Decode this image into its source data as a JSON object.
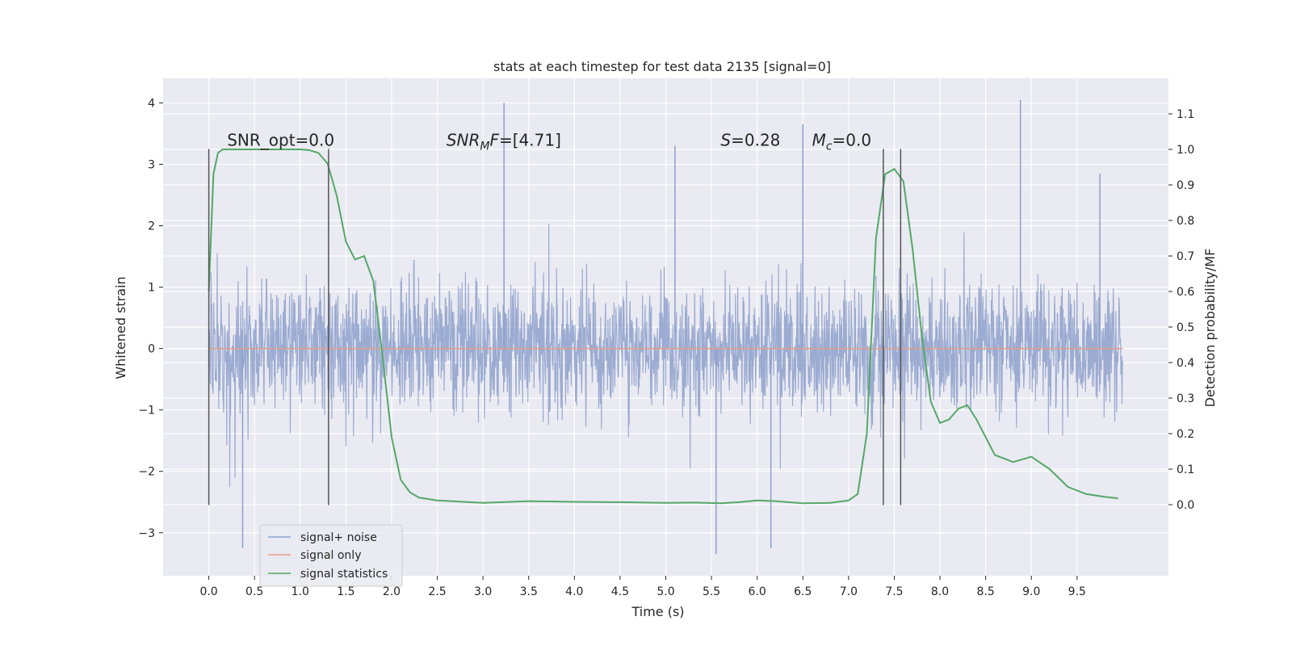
{
  "chart_data": {
    "type": "line",
    "title": "stats at each timestep for test data 2135 [signal=0]",
    "xlabel": "Time (s)",
    "ylabel_left": "Whitened strain",
    "ylabel_right": "Detection probability/MF",
    "xlim": [
      -0.5,
      10.5
    ],
    "ylim_left": [
      -3.7,
      4.4
    ],
    "ylim_right": [
      -0.2,
      1.2
    ],
    "xticks": [
      0.0,
      0.5,
      1.0,
      1.5,
      2.0,
      2.5,
      3.0,
      3.5,
      4.0,
      4.5,
      5.0,
      5.5,
      6.0,
      6.5,
      7.0,
      7.5,
      8.0,
      8.5,
      9.0,
      9.5
    ],
    "xtick_labels": [
      "0.0",
      "0.5",
      "1.0",
      "1.5",
      "2.0",
      "2.5",
      "3.0",
      "3.5",
      "4.0",
      "4.5",
      "5.0",
      "5.5",
      "6.0",
      "6.5",
      "7.0",
      "7.5",
      "8.0",
      "8.5",
      "9.0",
      "9.5"
    ],
    "yticks_left": [
      4,
      3,
      2,
      1,
      0,
      -1,
      -2,
      -3
    ],
    "ytick_labels_left": [
      "4",
      "3",
      "2",
      "1",
      "0",
      "−1",
      "−2",
      "−3"
    ],
    "yticks_right": [
      1.1,
      1.0,
      0.9,
      0.8,
      0.7,
      0.6,
      0.5,
      0.4,
      0.3,
      0.2,
      0.1,
      0.0
    ],
    "ytick_labels_right": [
      "1.1",
      "1.0",
      "0.9",
      "0.8",
      "0.7",
      "0.6",
      "0.5",
      "0.4",
      "0.3",
      "0.2",
      "0.1",
      "0.0"
    ],
    "grid": true,
    "legend_position": "lower-left",
    "colors": {
      "background": "#eaeaf2",
      "grid": "#ffffff",
      "noise": "#8da0cb",
      "signal": "#e59e86",
      "stats": "#55a868",
      "vlines": "#555555"
    },
    "series": [
      {
        "name": "signal+ noise",
        "kind": "strain",
        "x_range": [
          0.0,
          10.0
        ],
        "envelope": [
          {
            "x": 0.0,
            "lo": -2.6,
            "hi": 1.8
          },
          {
            "x": 0.5,
            "lo": -3.3,
            "hi": 2.6
          },
          {
            "x": 1.0,
            "lo": -2.3,
            "hi": 2.8
          },
          {
            "x": 1.5,
            "lo": -2.3,
            "hi": 2.7
          },
          {
            "x": 2.0,
            "lo": -2.5,
            "hi": 2.7
          },
          {
            "x": 2.5,
            "lo": -2.9,
            "hi": 2.7
          },
          {
            "x": 3.0,
            "lo": -2.7,
            "hi": 4.0
          },
          {
            "x": 3.5,
            "lo": -2.6,
            "hi": 2.7
          },
          {
            "x": 4.0,
            "lo": -2.6,
            "hi": 2.5
          },
          {
            "x": 4.5,
            "lo": -2.4,
            "hi": 2.8
          },
          {
            "x": 5.0,
            "lo": -2.5,
            "hi": 3.3
          },
          {
            "x": 5.5,
            "lo": -3.4,
            "hi": 2.5
          },
          {
            "x": 6.0,
            "lo": -3.3,
            "hi": 2.9
          },
          {
            "x": 6.5,
            "lo": -2.8,
            "hi": 3.6
          },
          {
            "x": 7.0,
            "lo": -2.5,
            "hi": 2.8
          },
          {
            "x": 7.5,
            "lo": -2.6,
            "hi": 2.6
          },
          {
            "x": 8.0,
            "lo": -3.0,
            "hi": 2.6
          },
          {
            "x": 8.5,
            "lo": -3.0,
            "hi": 2.5
          },
          {
            "x": 9.0,
            "lo": -2.7,
            "hi": 4.0
          },
          {
            "x": 9.5,
            "lo": -3.0,
            "hi": 2.8
          },
          {
            "x": 10.0,
            "lo": -2.5,
            "hi": 2.3
          }
        ],
        "peaks": [
          {
            "x": 0.37,
            "y": -3.25
          },
          {
            "x": 3.23,
            "y": 4.0
          },
          {
            "x": 5.1,
            "y": 3.3
          },
          {
            "x": 5.55,
            "y": -3.35
          },
          {
            "x": 6.15,
            "y": -3.25
          },
          {
            "x": 6.5,
            "y": 3.65
          },
          {
            "x": 8.88,
            "y": 4.05
          },
          {
            "x": 9.75,
            "y": 2.85
          }
        ]
      },
      {
        "name": "signal only",
        "kind": "flat",
        "x": [
          0.0,
          10.0
        ],
        "y": [
          0.0,
          0.0
        ]
      },
      {
        "name": "signal statistics",
        "kind": "probability",
        "x": [
          0.0,
          0.05,
          0.1,
          0.15,
          0.2,
          0.3,
          0.5,
          0.8,
          1.0,
          1.1,
          1.2,
          1.3,
          1.4,
          1.5,
          1.6,
          1.7,
          1.8,
          1.9,
          2.0,
          2.1,
          2.2,
          2.3,
          2.5,
          3.0,
          3.5,
          4.0,
          4.5,
          5.0,
          5.3,
          5.6,
          5.8,
          6.0,
          6.2,
          6.5,
          6.8,
          7.0,
          7.1,
          7.2,
          7.3,
          7.4,
          7.5,
          7.6,
          7.7,
          7.8,
          7.9,
          8.0,
          8.1,
          8.2,
          8.3,
          8.4,
          8.6,
          8.8,
          9.0,
          9.2,
          9.4,
          9.6,
          9.8,
          9.95
        ],
        "y": [
          0.6,
          0.93,
          0.99,
          1.0,
          1.0,
          1.0,
          1.0,
          1.0,
          1.0,
          0.998,
          0.99,
          0.96,
          0.87,
          0.74,
          0.69,
          0.7,
          0.63,
          0.42,
          0.19,
          0.07,
          0.035,
          0.02,
          0.012,
          0.005,
          0.01,
          0.008,
          0.007,
          0.005,
          0.006,
          0.004,
          0.007,
          0.012,
          0.01,
          0.004,
          0.005,
          0.012,
          0.03,
          0.2,
          0.75,
          0.93,
          0.945,
          0.91,
          0.72,
          0.48,
          0.29,
          0.23,
          0.24,
          0.27,
          0.28,
          0.24,
          0.14,
          0.12,
          0.135,
          0.1,
          0.05,
          0.03,
          0.022,
          0.018
        ]
      }
    ],
    "vlines": [
      {
        "x": 0.0,
        "y": [
          -2.55,
          3.25
        ]
      },
      {
        "x": 1.31,
        "y": [
          -2.55,
          3.25
        ]
      },
      {
        "x": 7.38,
        "y": [
          -2.55,
          3.25
        ]
      },
      {
        "x": 7.57,
        "y": [
          -2.55,
          3.25
        ]
      }
    ],
    "annotations": [
      {
        "id": "snr-opt",
        "text": "SNR_opt=0.0",
        "x": 0.2,
        "y": 3.3
      },
      {
        "id": "snr-mf",
        "text": "[4.71]",
        "prefix": "SNR",
        "sub": "M",
        "mid": "F=",
        "x": 2.6,
        "y": 3.3
      },
      {
        "id": "s-stat",
        "text": "=0.28",
        "prefix": "S",
        "x": 5.6,
        "y": 3.3
      },
      {
        "id": "mc",
        "text": "=0.0",
        "prefix": "M",
        "sub": "c",
        "x": 6.6,
        "y": 3.3
      }
    ]
  }
}
